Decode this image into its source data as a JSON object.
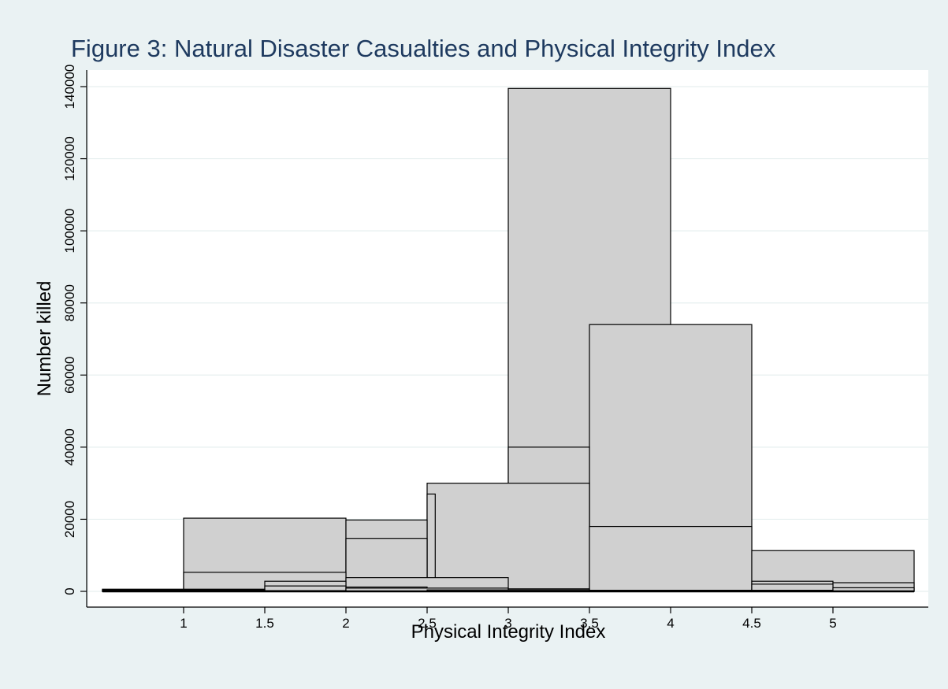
{
  "chart_data": {
    "type": "bar",
    "title": "Figure 3: Natural Disaster Casualties and Physical Integrity Index",
    "xlabel": "Physical Integrity Index",
    "ylabel": "Number killed",
    "xlim": [
      0.5,
      5.5
    ],
    "ylim": [
      -3000,
      143000
    ],
    "x_ticks": [
      1,
      1.5,
      2,
      2.5,
      3,
      3.5,
      4,
      4.5,
      5
    ],
    "y_ticks": [
      0,
      20000,
      40000,
      60000,
      80000,
      100000,
      120000,
      140000
    ],
    "grid": true,
    "bar_fill": "#d0d0d0",
    "bar_stroke": "#000000",
    "background": "#eaf2f3",
    "plot_background": "#ffffff",
    "title_color": "#1e3a5f",
    "bars": [
      {
        "x0": 3,
        "x1": 4,
        "value": 139500
      },
      {
        "x0": 3.5,
        "x1": 4.5,
        "value": 74000
      },
      {
        "x0": 3,
        "x1": 3.5,
        "value": 40000
      },
      {
        "x0": 2.5,
        "x1": 3.5,
        "value": 30000
      },
      {
        "x0": 2.5,
        "x1": 2.55,
        "value": 27000
      },
      {
        "x0": 1,
        "x1": 2,
        "value": 20300
      },
      {
        "x0": 2,
        "x1": 2.5,
        "value": 19800
      },
      {
        "x0": 3.5,
        "x1": 4.5,
        "value": 18000
      },
      {
        "x0": 2,
        "x1": 2.5,
        "value": 14700
      },
      {
        "x0": 4.5,
        "x1": 5.5,
        "value": 11300
      },
      {
        "x0": 1,
        "x1": 2,
        "value": 5300
      },
      {
        "x0": 2,
        "x1": 3,
        "value": 3800
      },
      {
        "x0": 1.5,
        "x1": 2,
        "value": 2800
      },
      {
        "x0": 4.5,
        "x1": 5,
        "value": 2800
      },
      {
        "x0": 5,
        "x1": 5.5,
        "value": 2400
      },
      {
        "x0": 4.5,
        "x1": 5,
        "value": 2000
      },
      {
        "x0": 1.5,
        "x1": 2,
        "value": 1500
      },
      {
        "x0": 2,
        "x1": 2.5,
        "value": 1200
      },
      {
        "x0": 5,
        "x1": 5.5,
        "value": 1000
      },
      {
        "x0": 2,
        "x1": 3,
        "value": 900
      },
      {
        "x0": 3,
        "x1": 3.5,
        "value": 700
      },
      {
        "x0": 0.5,
        "x1": 1.5,
        "value": 600
      },
      {
        "x0": 0.5,
        "x1": 1.5,
        "value": 400
      },
      {
        "x0": 2.5,
        "x1": 3.5,
        "value": 400
      },
      {
        "x0": 3.5,
        "x1": 4.5,
        "value": 300
      },
      {
        "x0": 4,
        "x1": 5,
        "value": 300
      },
      {
        "x0": 0.5,
        "x1": 1,
        "value": 200
      },
      {
        "x0": 1,
        "x1": 2,
        "value": 200
      }
    ]
  }
}
